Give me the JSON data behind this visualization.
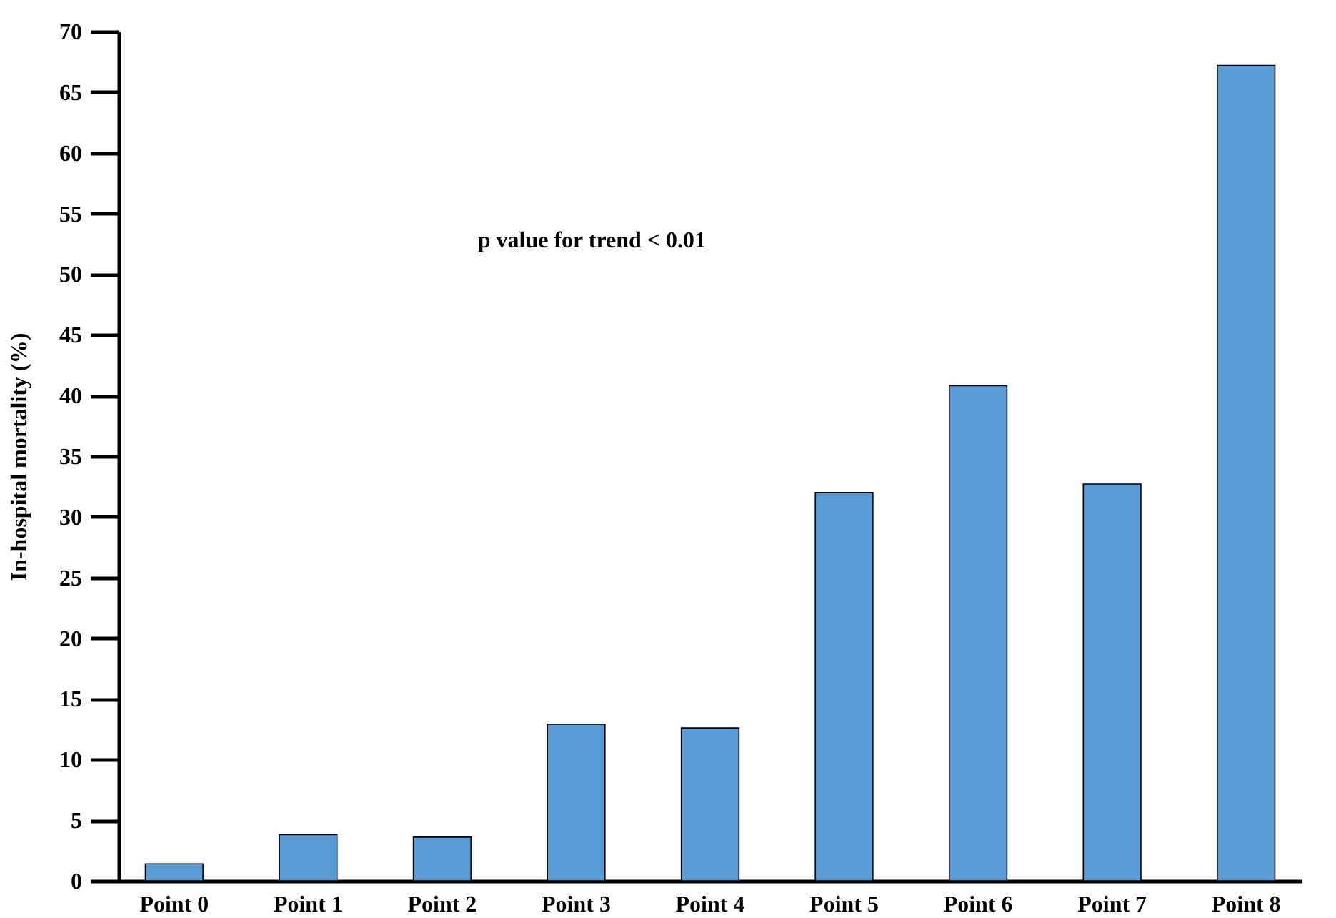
{
  "chart_data": {
    "type": "bar",
    "ylabel": "In-hospital mortality (%)",
    "categories": [
      "Point 0",
      "Point 1",
      "Point 2",
      "Point 3",
      "Point 4",
      "Point 5",
      "Point 6",
      "Point 7",
      "Point 8"
    ],
    "values": [
      1.4,
      3.8,
      3.6,
      12.9,
      12.6,
      32,
      40.8,
      32.7,
      67.2
    ],
    "color": "#5b9bd5",
    "ylim": [
      0,
      70
    ],
    "yticks": [
      0,
      5,
      10,
      15,
      20,
      25,
      30,
      35,
      40,
      45,
      50,
      55,
      60,
      65,
      70
    ],
    "grid": false,
    "annotations": [
      "p value for trend < 0.01"
    ]
  }
}
